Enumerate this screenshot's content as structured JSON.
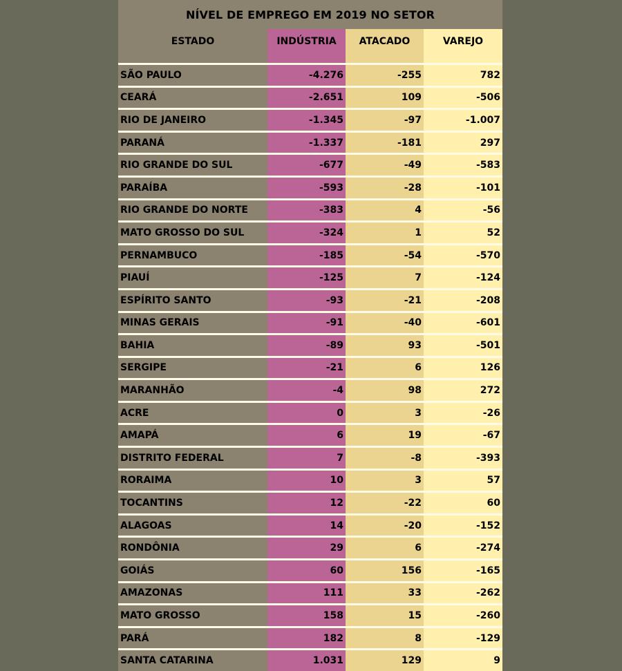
{
  "title": "NÍVEL DE EMPREGO EM 2019 NO SETOR",
  "colors": {
    "background": "#696a5a",
    "estado_column": "#8b8270",
    "industria_column": "#bb6597",
    "atacado_column": "#ead48f",
    "varejo_column": "#fff0ad",
    "row_divider": "#fffbe6"
  },
  "chart_data": {
    "type": "table",
    "title": "NÍVEL DE EMPREGO EM 2019 NO SETOR",
    "columns": [
      "ESTADO",
      "INDÚSTRIA",
      "ATACADO",
      "VAREJO"
    ],
    "rows": [
      [
        "SÃO PAULO",
        "-4.276",
        "-255",
        "782"
      ],
      [
        "CEARÁ",
        "-2.651",
        "109",
        "-506"
      ],
      [
        "RIO DE JANEIRO",
        "-1.345",
        "-97",
        "-1.007"
      ],
      [
        "PARANÁ",
        "-1.337",
        "-181",
        "297"
      ],
      [
        "RIO GRANDE DO SUL",
        "-677",
        "-49",
        "-583"
      ],
      [
        "PARAÍBA",
        "-593",
        "-28",
        "-101"
      ],
      [
        "RIO GRANDE DO NORTE",
        "-383",
        "4",
        "-56"
      ],
      [
        "MATO GROSSO DO SUL",
        "-324",
        "1",
        "52"
      ],
      [
        "PERNAMBUCO",
        "-185",
        "-54",
        "-570"
      ],
      [
        "PIAUÍ",
        "-125",
        "7",
        "-124"
      ],
      [
        "ESPÍRITO SANTO",
        "-93",
        "-21",
        "-208"
      ],
      [
        "MINAS GERAIS",
        "-91",
        "-40",
        "-601"
      ],
      [
        "BAHIA",
        "-89",
        "93",
        "-501"
      ],
      [
        "SERGIPE",
        "-21",
        "6",
        "126"
      ],
      [
        "MARANHÃO",
        "-4",
        "98",
        "272"
      ],
      [
        "ACRE",
        "0",
        "3",
        "-26"
      ],
      [
        "AMAPÁ",
        "6",
        "19",
        "-67"
      ],
      [
        "DISTRITO FEDERAL",
        "7",
        "-8",
        "-393"
      ],
      [
        "RORAIMA",
        "10",
        "3",
        "57"
      ],
      [
        "TOCANTINS",
        "12",
        "-22",
        "60"
      ],
      [
        "ALAGOAS",
        "14",
        "-20",
        "-152"
      ],
      [
        "RONDÔNIA",
        "29",
        "6",
        "-274"
      ],
      [
        "GOIÁS",
        "60",
        "156",
        "-165"
      ],
      [
        "AMAZONAS",
        "111",
        "33",
        "-262"
      ],
      [
        "MATO GROSSO",
        "158",
        "15",
        "-260"
      ],
      [
        "PARÁ",
        "182",
        "8",
        "-129"
      ],
      [
        "SANTA CATARINA",
        "1.031",
        "129",
        "9"
      ]
    ]
  }
}
